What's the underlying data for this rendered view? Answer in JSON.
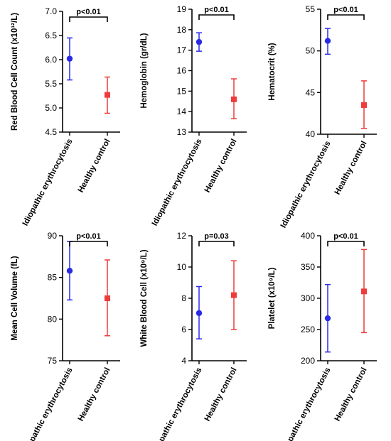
{
  "colors": {
    "idiopathic": "#2a2ae6",
    "control": "#ef3b3b",
    "axis": "#000000"
  },
  "chart_data": [
    {
      "type": "scatter",
      "ylabel": "Red Blood Cell Count (x10¹²/L)",
      "ylim": [
        4.5,
        7.0
      ],
      "yticks": [
        "4.5",
        "5.0",
        "5.5",
        "6.0",
        "6.5",
        "7.0"
      ],
      "categories": [
        "Idiopathic erythrocytosis",
        "Healthy control"
      ],
      "means": [
        6.02,
        5.27
      ],
      "lower": [
        5.58,
        4.89
      ],
      "upper": [
        6.45,
        5.64
      ],
      "pvalue": "p<0.01"
    },
    {
      "type": "scatter",
      "ylabel": "Hemoglobin (gr/dL)",
      "ylim": [
        13,
        19
      ],
      "yticks": [
        "13",
        "14",
        "15",
        "16",
        "17",
        "18",
        "19"
      ],
      "categories": [
        "Idiopathic erythrocytosis",
        "Healthy control"
      ],
      "means": [
        17.4,
        14.6
      ],
      "lower": [
        16.95,
        13.65
      ],
      "upper": [
        17.85,
        15.6
      ],
      "pvalue": "p<0.01"
    },
    {
      "type": "scatter",
      "ylabel": "Hematocrit (%)",
      "ylim": [
        40,
        55
      ],
      "yticks": [
        "40",
        "45",
        "50",
        "55"
      ],
      "categories": [
        "Idiopathic erythrocytosis",
        "Healthy control"
      ],
      "means": [
        51.2,
        43.5
      ],
      "lower": [
        49.6,
        40.7
      ],
      "upper": [
        52.7,
        46.4
      ],
      "pvalue": "p<0.01"
    },
    {
      "type": "scatter",
      "ylabel": "Mean Cell Volume (fL)",
      "ylim": [
        75,
        90
      ],
      "yticks": [
        "75",
        "80",
        "85",
        "90"
      ],
      "categories": [
        "Idiopathic erythrocytosis",
        "Healthy control"
      ],
      "means": [
        85.8,
        82.5
      ],
      "lower": [
        82.3,
        78.0
      ],
      "upper": [
        89.3,
        87.1
      ],
      "pvalue": "p<0.01"
    },
    {
      "type": "scatter",
      "ylabel": "White Blood Cell (x10⁹/L)",
      "ylim": [
        4,
        12
      ],
      "yticks": [
        "4",
        "6",
        "8",
        "10",
        "12"
      ],
      "categories": [
        "Idiopathic erythrocytosis",
        "Healthy control"
      ],
      "means": [
        7.05,
        8.2
      ],
      "lower": [
        5.4,
        6.0
      ],
      "upper": [
        8.75,
        10.4
      ],
      "pvalue": "p=0.03"
    },
    {
      "type": "scatter",
      "ylabel": "Platelet (x10⁹/L)",
      "ylim": [
        200,
        400
      ],
      "yticks": [
        "200",
        "250",
        "300",
        "350",
        "400"
      ],
      "categories": [
        "Idiopathic erythrocytosis",
        "Healthy control"
      ],
      "means": [
        268,
        311
      ],
      "lower": [
        214,
        245
      ],
      "upper": [
        322,
        378
      ],
      "pvalue": "p<0.01"
    }
  ]
}
